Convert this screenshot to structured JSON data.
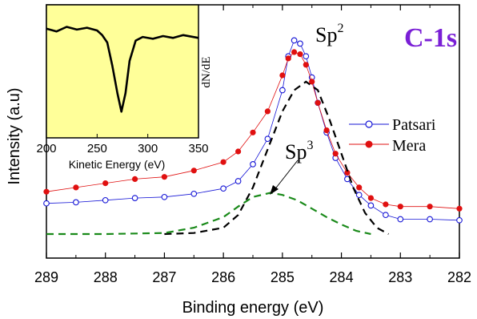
{
  "chart_data": {
    "type": "scatter",
    "xlabel": "Binding energy (eV)",
    "ylabel": "Intensity (a.u)",
    "xlim": [
      289,
      282
    ],
    "x_ticks": [
      "289",
      "288",
      "287",
      "286",
      "285",
      "284",
      "283",
      "282"
    ],
    "title_annotation": "C-1s",
    "peak_labels": {
      "sp2": "Sp",
      "sp2_sup": "2",
      "sp3": "Sp",
      "sp3_sup": "3"
    },
    "legend": {
      "placement": "right",
      "entries": [
        "Patsari",
        "Mera"
      ]
    },
    "series": [
      {
        "name": "Patsari",
        "marker": "open-circle",
        "color": "#1515d6",
        "points": [
          [
            289.0,
            0.145
          ],
          [
            288.5,
            0.15
          ],
          [
            288.0,
            0.16
          ],
          [
            287.5,
            0.17
          ],
          [
            287.0,
            0.175
          ],
          [
            286.5,
            0.19
          ],
          [
            286.0,
            0.215
          ],
          [
            285.75,
            0.25
          ],
          [
            285.5,
            0.33
          ],
          [
            285.25,
            0.45
          ],
          [
            285.0,
            0.68
          ],
          [
            284.9,
            0.84
          ],
          [
            284.8,
            0.915
          ],
          [
            284.7,
            0.9
          ],
          [
            284.6,
            0.84
          ],
          [
            284.5,
            0.74
          ],
          [
            284.4,
            0.62
          ],
          [
            284.25,
            0.48
          ],
          [
            284.1,
            0.36
          ],
          [
            283.9,
            0.26
          ],
          [
            283.7,
            0.185
          ],
          [
            283.5,
            0.135
          ],
          [
            283.25,
            0.09
          ],
          [
            283.0,
            0.07
          ],
          [
            282.5,
            0.07
          ],
          [
            282.0,
            0.065
          ]
        ]
      },
      {
        "name": "Mera",
        "marker": "filled-circle",
        "color": "#e01010",
        "points": [
          [
            289.0,
            0.2
          ],
          [
            288.5,
            0.22
          ],
          [
            288.0,
            0.24
          ],
          [
            287.5,
            0.26
          ],
          [
            287.0,
            0.27
          ],
          [
            286.5,
            0.3
          ],
          [
            286.0,
            0.34
          ],
          [
            285.75,
            0.39
          ],
          [
            285.5,
            0.48
          ],
          [
            285.25,
            0.58
          ],
          [
            285.0,
            0.75
          ],
          [
            284.9,
            0.83
          ],
          [
            284.8,
            0.86
          ],
          [
            284.7,
            0.85
          ],
          [
            284.6,
            0.8
          ],
          [
            284.5,
            0.72
          ],
          [
            284.4,
            0.62
          ],
          [
            284.25,
            0.49
          ],
          [
            284.1,
            0.38
          ],
          [
            283.9,
            0.29
          ],
          [
            283.7,
            0.22
          ],
          [
            283.5,
            0.17
          ],
          [
            283.25,
            0.14
          ],
          [
            283.0,
            0.13
          ],
          [
            282.5,
            0.13
          ],
          [
            282.0,
            0.12
          ]
        ]
      },
      {
        "name": "",
        "style": "dashed",
        "color": "#000000",
        "points": [
          [
            287.0,
            0.0
          ],
          [
            286.5,
            0.005
          ],
          [
            286.0,
            0.03
          ],
          [
            285.75,
            0.09
          ],
          [
            285.5,
            0.22
          ],
          [
            285.25,
            0.4
          ],
          [
            285.0,
            0.58
          ],
          [
            284.8,
            0.68
          ],
          [
            284.6,
            0.72
          ],
          [
            284.4,
            0.68
          ],
          [
            284.2,
            0.54
          ],
          [
            284.0,
            0.38
          ],
          [
            283.8,
            0.22
          ],
          [
            283.6,
            0.1
          ],
          [
            283.4,
            0.03
          ],
          [
            283.2,
            0.0
          ]
        ]
      },
      {
        "name": "",
        "style": "dashed",
        "color": "#1a8a1a",
        "points": [
          [
            289.0,
            0.0
          ],
          [
            288.0,
            0.0
          ],
          [
            287.0,
            0.005
          ],
          [
            286.5,
            0.03
          ],
          [
            286.0,
            0.08
          ],
          [
            285.75,
            0.13
          ],
          [
            285.5,
            0.175
          ],
          [
            285.2,
            0.195
          ],
          [
            285.0,
            0.185
          ],
          [
            284.75,
            0.16
          ],
          [
            284.5,
            0.12
          ],
          [
            284.25,
            0.08
          ],
          [
            284.0,
            0.045
          ],
          [
            283.75,
            0.015
          ],
          [
            283.5,
            0.0
          ]
        ]
      }
    ],
    "inset": {
      "xlabel": "Kinetic Energy (eV)",
      "ylabel": "dN/dE",
      "x_ticks": [
        "200",
        "250",
        "300",
        "350"
      ],
      "xlim": [
        200,
        350
      ],
      "background": "#ffff99",
      "curve": [
        [
          200,
          0.95
        ],
        [
          210,
          0.92
        ],
        [
          220,
          0.97
        ],
        [
          230,
          0.94
        ],
        [
          240,
          0.96
        ],
        [
          250,
          0.93
        ],
        [
          255,
          0.88
        ],
        [
          260,
          0.8
        ],
        [
          265,
          0.55
        ],
        [
          270,
          0.25
        ],
        [
          274,
          0.05
        ],
        [
          278,
          0.25
        ],
        [
          282,
          0.6
        ],
        [
          288,
          0.82
        ],
        [
          295,
          0.86
        ],
        [
          305,
          0.84
        ],
        [
          315,
          0.87
        ],
        [
          325,
          0.85
        ],
        [
          335,
          0.88
        ],
        [
          350,
          0.85
        ]
      ]
    }
  }
}
